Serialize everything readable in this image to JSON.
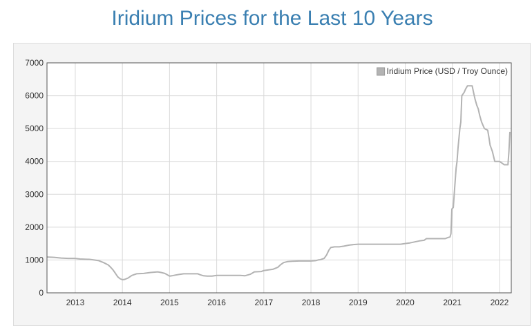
{
  "page": {
    "title": "Iridium Prices for the Last 10 Years"
  },
  "colors": {
    "title": "#3a7fb1",
    "line": "#b3b3b3",
    "grid": "#d9d9d9",
    "plot_bg": "#ffffff",
    "panel_bg": "#f4f4f4"
  },
  "chart_data": {
    "type": "line",
    "title": "Iridium Prices for the Last 10 Years",
    "xlabel": "",
    "ylabel": "",
    "xlim": [
      2012.4,
      2022.25
    ],
    "ylim": [
      0,
      7000
    ],
    "x_ticks": [
      2013,
      2014,
      2015,
      2016,
      2017,
      2018,
      2019,
      2020,
      2021,
      2022
    ],
    "x_tick_labels": [
      "2013",
      "2014",
      "2015",
      "2016",
      "2017",
      "2018",
      "2019",
      "2020",
      "2021",
      "2022"
    ],
    "y_ticks": [
      0,
      1000,
      2000,
      3000,
      4000,
      5000,
      6000,
      7000
    ],
    "y_tick_labels": [
      "0",
      "1000",
      "2000",
      "3000",
      "4000",
      "5000",
      "6000",
      "7000"
    ],
    "grid": true,
    "legend_position": "top-right",
    "series": [
      {
        "name": "Iridium Price (USD / Troy Ounce)",
        "points": [
          [
            2012.4,
            1090
          ],
          [
            2012.55,
            1080
          ],
          [
            2012.7,
            1060
          ],
          [
            2012.85,
            1050
          ],
          [
            2013.0,
            1050
          ],
          [
            2013.1,
            1030
          ],
          [
            2013.3,
            1020
          ],
          [
            2013.4,
            1000
          ],
          [
            2013.5,
            980
          ],
          [
            2013.6,
            920
          ],
          [
            2013.7,
            850
          ],
          [
            2013.75,
            780
          ],
          [
            2013.8,
            700
          ],
          [
            2013.85,
            600
          ],
          [
            2013.9,
            490
          ],
          [
            2013.95,
            430
          ],
          [
            2014.0,
            400
          ],
          [
            2014.05,
            410
          ],
          [
            2014.12,
            450
          ],
          [
            2014.2,
            530
          ],
          [
            2014.3,
            580
          ],
          [
            2014.45,
            590
          ],
          [
            2014.6,
            620
          ],
          [
            2014.75,
            640
          ],
          [
            2014.82,
            620
          ],
          [
            2014.9,
            590
          ],
          [
            2014.95,
            550
          ],
          [
            2015.0,
            510
          ],
          [
            2015.05,
            520
          ],
          [
            2015.12,
            540
          ],
          [
            2015.2,
            560
          ],
          [
            2015.3,
            580
          ],
          [
            2015.5,
            580
          ],
          [
            2015.6,
            580
          ],
          [
            2015.65,
            550
          ],
          [
            2015.72,
            520
          ],
          [
            2015.8,
            510
          ],
          [
            2015.9,
            510
          ],
          [
            2016.0,
            530
          ],
          [
            2016.2,
            530
          ],
          [
            2016.5,
            530
          ],
          [
            2016.6,
            520
          ],
          [
            2016.65,
            540
          ],
          [
            2016.72,
            570
          ],
          [
            2016.8,
            640
          ],
          [
            2016.95,
            650
          ],
          [
            2017.0,
            680
          ],
          [
            2017.1,
            700
          ],
          [
            2017.2,
            720
          ],
          [
            2017.25,
            750
          ],
          [
            2017.3,
            780
          ],
          [
            2017.35,
            850
          ],
          [
            2017.42,
            920
          ],
          [
            2017.5,
            950
          ],
          [
            2017.6,
            960
          ],
          [
            2017.75,
            970
          ],
          [
            2018.0,
            970
          ],
          [
            2018.1,
            980
          ],
          [
            2018.15,
            1000
          ],
          [
            2018.2,
            1010
          ],
          [
            2018.28,
            1050
          ],
          [
            2018.33,
            1150
          ],
          [
            2018.38,
            1300
          ],
          [
            2018.42,
            1380
          ],
          [
            2018.5,
            1400
          ],
          [
            2018.6,
            1400
          ],
          [
            2018.7,
            1420
          ],
          [
            2018.8,
            1450
          ],
          [
            2018.9,
            1470
          ],
          [
            2019.0,
            1480
          ],
          [
            2019.5,
            1480
          ],
          [
            2019.9,
            1480
          ],
          [
            2020.0,
            1500
          ],
          [
            2020.1,
            1520
          ],
          [
            2020.3,
            1580
          ],
          [
            2020.4,
            1600
          ],
          [
            2020.45,
            1650
          ],
          [
            2020.6,
            1650
          ],
          [
            2020.85,
            1650
          ],
          [
            2020.9,
            1680
          ],
          [
            2020.95,
            1700
          ],
          [
            2020.97,
            1800
          ],
          [
            2020.99,
            2550
          ],
          [
            2021.02,
            2600
          ],
          [
            2021.05,
            3200
          ],
          [
            2021.08,
            3800
          ],
          [
            2021.1,
            4000
          ],
          [
            2021.12,
            4400
          ],
          [
            2021.16,
            5000
          ],
          [
            2021.18,
            5200
          ],
          [
            2021.2,
            6000
          ],
          [
            2021.25,
            6100
          ],
          [
            2021.28,
            6200
          ],
          [
            2021.32,
            6300
          ],
          [
            2021.42,
            6300
          ],
          [
            2021.45,
            6100
          ],
          [
            2021.48,
            5900
          ],
          [
            2021.52,
            5700
          ],
          [
            2021.55,
            5600
          ],
          [
            2021.58,
            5400
          ],
          [
            2021.62,
            5200
          ],
          [
            2021.68,
            5000
          ],
          [
            2021.75,
            4950
          ],
          [
            2021.78,
            4700
          ],
          [
            2021.8,
            4500
          ],
          [
            2021.85,
            4300
          ],
          [
            2021.9,
            4000
          ],
          [
            2022.0,
            4000
          ],
          [
            2022.05,
            3950
          ],
          [
            2022.1,
            3900
          ],
          [
            2022.18,
            3900
          ],
          [
            2022.2,
            4300
          ],
          [
            2022.22,
            4900
          ]
        ]
      }
    ]
  }
}
